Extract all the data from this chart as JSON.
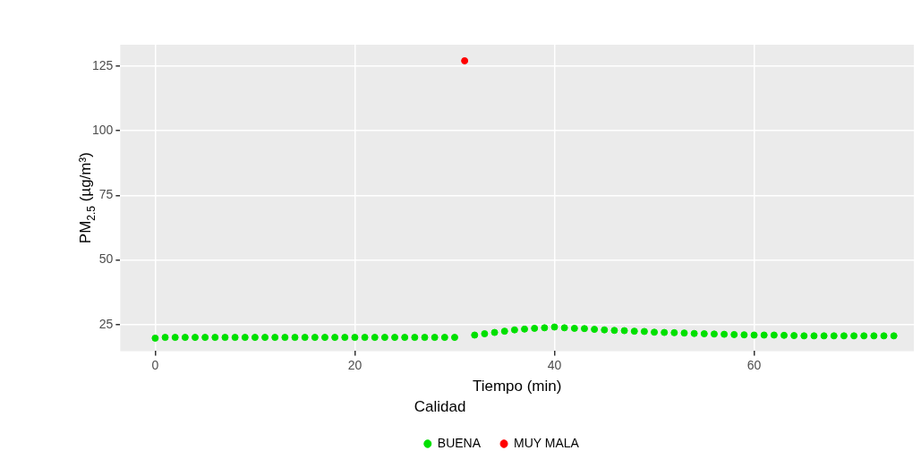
{
  "chart_data": {
    "type": "scatter",
    "xlabel": "Tiempo (min)",
    "ylabel": "PM$_{2.5}$ (µg/m³)",
    "legend_title": "Calidad",
    "legend": "bottom",
    "grid": true,
    "marker": "circle",
    "xlim": [
      -3.5,
      76
    ],
    "xticks": [
      0,
      20,
      40,
      60
    ],
    "ylim": [
      14.8,
      133.2
    ],
    "yticks": [
      25,
      50,
      75,
      100,
      125
    ],
    "series": [
      {
        "name": "BUENA",
        "color": "#00e000",
        "x": [
          0,
          1,
          2,
          3,
          4,
          5,
          6,
          7,
          8,
          9,
          10,
          11,
          12,
          13,
          14,
          15,
          16,
          17,
          18,
          19,
          20,
          21,
          22,
          23,
          24,
          25,
          26,
          27,
          28,
          29,
          30,
          32,
          33,
          34,
          35,
          36,
          37,
          38,
          39,
          40,
          41,
          42,
          43,
          44,
          45,
          46,
          47,
          48,
          49,
          50,
          51,
          52,
          53,
          54,
          55,
          56,
          57,
          58,
          59,
          60,
          61,
          62,
          63,
          64,
          65,
          66,
          67,
          68,
          69,
          70,
          71,
          72,
          73,
          74
        ],
        "values": [
          19.8,
          20.1,
          20.1,
          20.1,
          20.1,
          20.1,
          20.1,
          20.1,
          20.1,
          20.1,
          20.1,
          20.1,
          20.1,
          20.1,
          20.1,
          20.1,
          20.1,
          20.1,
          20.1,
          20.1,
          20.1,
          20.1,
          20.1,
          20.1,
          20.1,
          20.1,
          20.1,
          20.1,
          20.1,
          20.1,
          20.1,
          21,
          21.5,
          22,
          22.5,
          23,
          23.3,
          23.6,
          23.8,
          24.1,
          23.8,
          23.6,
          23.5,
          23.2,
          23,
          22.8,
          22.7,
          22.5,
          22.4,
          22.1,
          22,
          21.9,
          21.8,
          21.6,
          21.5,
          21.4,
          21.3,
          21.2,
          21.1,
          21,
          21,
          21,
          20.9,
          20.8,
          20.7,
          20.7,
          20.7,
          20.7,
          20.7,
          20.7,
          20.7,
          20.7,
          20.7,
          20.7
        ]
      },
      {
        "name": "MUY MALA",
        "color": "#ff0000",
        "x": [
          31
        ],
        "values": [
          127
        ]
      }
    ]
  }
}
